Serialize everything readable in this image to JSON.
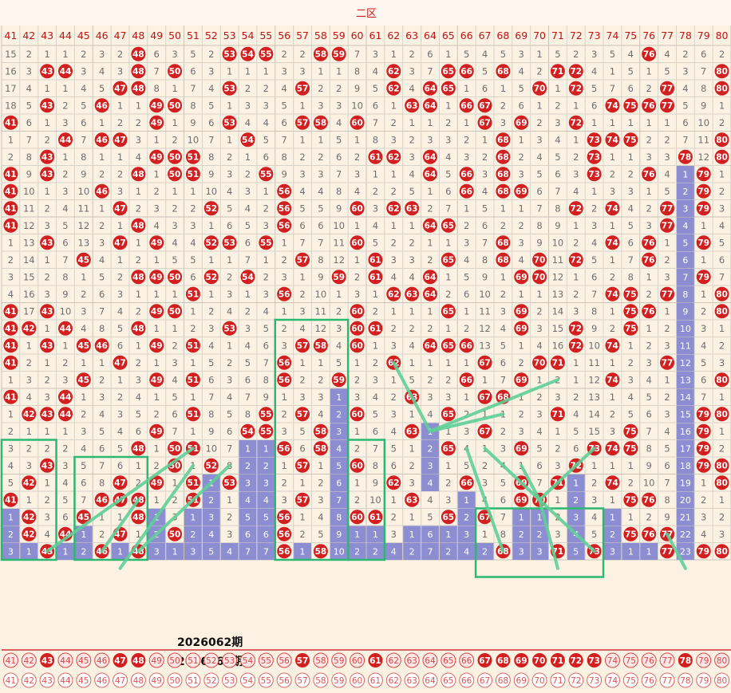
{
  "chart_data": {
    "type": "table",
    "zone_label": "二区",
    "columns": [
      41,
      42,
      43,
      44,
      45,
      46,
      47,
      48,
      49,
      50,
      51,
      52,
      53,
      54,
      55,
      56,
      57,
      58,
      59,
      60,
      61,
      62,
      63,
      64,
      65,
      66,
      67,
      68,
      69,
      70,
      71,
      72,
      73,
      74,
      75,
      76,
      77,
      78,
      79,
      80
    ],
    "rows": [
      [
        15,
        2,
        1,
        1,
        2,
        3,
        2,
        "H",
        6,
        3,
        5,
        2,
        "H",
        "H",
        "H",
        2,
        2,
        "H",
        "H",
        7,
        3,
        1,
        2,
        6,
        1,
        5,
        4,
        5,
        3,
        1,
        5,
        2,
        3,
        5,
        4,
        "H",
        4,
        2,
        6,
        2
      ],
      [
        16,
        3,
        "H",
        "H",
        3,
        4,
        3,
        "H",
        7,
        "H",
        6,
        3,
        1,
        1,
        1,
        3,
        3,
        1,
        1,
        8,
        4,
        "H",
        3,
        7,
        "H",
        "H",
        5,
        "H",
        4,
        2,
        "H",
        "H",
        4,
        1,
        5,
        1,
        5,
        3,
        7,
        "H"
      ],
      [
        17,
        4,
        1,
        1,
        4,
        5,
        "H",
        "H",
        8,
        1,
        7,
        4,
        "H",
        2,
        2,
        4,
        "H",
        2,
        2,
        9,
        5,
        "H",
        4,
        "H",
        "H",
        1,
        6,
        1,
        5,
        "H",
        1,
        "H",
        5,
        7,
        6,
        2,
        "H",
        4,
        8,
        "H"
      ],
      [
        18,
        5,
        "H",
        2,
        5,
        "H",
        1,
        1,
        "H",
        "H",
        8,
        5,
        1,
        3,
        3,
        5,
        1,
        3,
        3,
        10,
        6,
        1,
        "H",
        "H",
        1,
        "H",
        "H",
        2,
        6,
        1,
        2,
        1,
        6,
        "H",
        "H",
        "H",
        "H",
        5,
        9,
        1
      ],
      [
        "H",
        6,
        1,
        3,
        6,
        1,
        2,
        2,
        "H",
        1,
        9,
        6,
        "H",
        4,
        4,
        6,
        "H",
        "H",
        4,
        "H",
        7,
        2,
        1,
        1,
        2,
        1,
        "H",
        3,
        "H",
        2,
        3,
        "H",
        1,
        1,
        1,
        1,
        1,
        6,
        10,
        2
      ],
      [
        1,
        7,
        2,
        "H",
        7,
        "H",
        "H",
        3,
        1,
        2,
        10,
        7,
        1,
        "H",
        5,
        7,
        1,
        1,
        5,
        1,
        8,
        3,
        2,
        3,
        3,
        2,
        1,
        "H",
        1,
        3,
        4,
        1,
        "H",
        "H",
        "H",
        2,
        2,
        7,
        11,
        "H"
      ],
      [
        2,
        8,
        "H",
        1,
        8,
        1,
        1,
        4,
        "H",
        "H",
        "H",
        8,
        2,
        1,
        6,
        8,
        2,
        2,
        6,
        2,
        "H",
        "H",
        3,
        "H",
        4,
        3,
        2,
        "H",
        2,
        4,
        5,
        2,
        "H",
        1,
        1,
        3,
        3,
        "H",
        12,
        "H"
      ],
      [
        "H",
        9,
        "H",
        2,
        9,
        2,
        2,
        "H",
        1,
        "H",
        "H",
        9,
        3,
        2,
        "H",
        9,
        3,
        3,
        7,
        3,
        1,
        1,
        4,
        "H",
        5,
        "H",
        3,
        "H",
        3,
        5,
        6,
        3,
        "H",
        2,
        2,
        "H",
        4,
        "B1",
        "H",
        1
      ],
      [
        "H",
        10,
        1,
        3,
        10,
        "H",
        3,
        1,
        2,
        1,
        1,
        10,
        4,
        3,
        1,
        "H",
        4,
        4,
        8,
        4,
        2,
        2,
        5,
        1,
        6,
        "H",
        4,
        "H",
        "H",
        6,
        7,
        4,
        1,
        3,
        3,
        1,
        5,
        "B2",
        "H",
        2
      ],
      [
        "H",
        11,
        2,
        4,
        11,
        1,
        "H",
        2,
        3,
        2,
        2,
        "H",
        5,
        4,
        2,
        "H",
        5,
        5,
        9,
        "H",
        3,
        "H",
        "H",
        2,
        7,
        1,
        5,
        1,
        1,
        7,
        8,
        "H",
        2,
        "H",
        4,
        2,
        "H",
        "B3",
        "H",
        3
      ],
      [
        "H",
        12,
        3,
        5,
        12,
        2,
        1,
        "H",
        4,
        3,
        3,
        1,
        6,
        5,
        3,
        "H",
        6,
        6,
        10,
        1,
        4,
        1,
        1,
        "H",
        "H",
        2,
        6,
        2,
        2,
        8,
        9,
        1,
        3,
        1,
        5,
        3,
        "H",
        "B4",
        1,
        4
      ],
      [
        1,
        13,
        "H",
        6,
        13,
        3,
        "H",
        1,
        "H",
        4,
        4,
        "H",
        "H",
        6,
        "H",
        1,
        7,
        7,
        11,
        "H",
        5,
        2,
        2,
        1,
        1,
        3,
        7,
        "H",
        3,
        9,
        10,
        2,
        4,
        "H",
        6,
        "H",
        1,
        "B5",
        "H",
        5
      ],
      [
        2,
        14,
        1,
        7,
        "H",
        4,
        1,
        2,
        1,
        5,
        5,
        1,
        1,
        7,
        1,
        2,
        "H",
        8,
        12,
        1,
        "H",
        3,
        3,
        2,
        "H",
        4,
        8,
        "H",
        4,
        "H",
        11,
        "H",
        5,
        1,
        7,
        "H",
        2,
        "B6",
        1,
        6
      ],
      [
        3,
        15,
        2,
        8,
        1,
        5,
        2,
        "H",
        "H",
        "H",
        6,
        "H",
        2,
        "H",
        2,
        3,
        1,
        9,
        "H",
        2,
        "H",
        4,
        4,
        "H",
        1,
        5,
        9,
        1,
        "H",
        "H",
        12,
        1,
        6,
        2,
        8,
        1,
        3,
        "B7",
        "H",
        7
      ],
      [
        4,
        16,
        3,
        9,
        2,
        6,
        3,
        1,
        1,
        1,
        "H",
        1,
        3,
        1,
        3,
        "H",
        2,
        10,
        1,
        3,
        1,
        "H",
        "H",
        "H",
        2,
        6,
        10,
        2,
        1,
        1,
        13,
        2,
        7,
        "H",
        "H",
        2,
        "H",
        "B8",
        1,
        "H"
      ],
      [
        "H",
        17,
        "H",
        10,
        3,
        7,
        4,
        2,
        "H",
        "H",
        1,
        2,
        4,
        2,
        4,
        1,
        3,
        11,
        2,
        "H",
        2,
        1,
        1,
        1,
        "H",
        1,
        11,
        3,
        "H",
        2,
        14,
        3,
        8,
        1,
        "H",
        "H",
        1,
        "B9",
        2,
        "H"
      ],
      [
        "H",
        "H",
        1,
        "H",
        4,
        8,
        5,
        "H",
        1,
        1,
        2,
        3,
        "H",
        3,
        5,
        2,
        4,
        12,
        3,
        "H",
        "H",
        2,
        2,
        2,
        1,
        2,
        12,
        4,
        "H",
        3,
        15,
        "H",
        9,
        2,
        "H",
        1,
        2,
        "B10",
        3,
        1
      ],
      [
        "H",
        1,
        "H",
        1,
        "H",
        "H",
        6,
        1,
        "H",
        2,
        "H",
        4,
        1,
        4,
        6,
        3,
        "H",
        "H",
        4,
        "H",
        1,
        3,
        4,
        "H",
        "H",
        "H",
        13,
        5,
        1,
        4,
        16,
        "H",
        10,
        "H",
        1,
        2,
        3,
        "B11",
        4,
        2
      ],
      [
        "H",
        2,
        1,
        2,
        1,
        1,
        "H",
        2,
        1,
        3,
        1,
        5,
        2,
        5,
        7,
        "H",
        1,
        1,
        5,
        1,
        2,
        "H",
        1,
        1,
        1,
        1,
        "H",
        6,
        2,
        "H",
        "H",
        1,
        11,
        1,
        2,
        3,
        "H",
        "B12",
        5,
        3
      ],
      [
        1,
        3,
        2,
        3,
        "H",
        2,
        1,
        3,
        "H",
        4,
        "H",
        6,
        3,
        6,
        8,
        "H",
        2,
        2,
        "H",
        2,
        3,
        1,
        5,
        2,
        2,
        "H",
        1,
        7,
        "H",
        1,
        2,
        1,
        12,
        "H",
        3,
        4,
        1,
        "B13",
        6,
        "H"
      ],
      [
        "H",
        4,
        3,
        "H",
        1,
        3,
        2,
        4,
        1,
        5,
        1,
        7,
        4,
        7,
        9,
        1,
        3,
        3,
        "B1",
        3,
        4,
        2,
        "H",
        3,
        3,
        1,
        "H",
        "H",
        1,
        2,
        3,
        2,
        13,
        1,
        4,
        5,
        2,
        "B14",
        7,
        1
      ],
      [
        1,
        "H",
        "H",
        "H",
        2,
        4,
        3,
        5,
        2,
        6,
        "H",
        8,
        5,
        8,
        "H",
        2,
        "H",
        4,
        "B2",
        "H",
        5,
        3,
        1,
        4,
        "H",
        2,
        1,
        1,
        2,
        3,
        "H",
        4,
        14,
        2,
        5,
        6,
        3,
        "B15",
        "H",
        "H"
      ],
      [
        2,
        1,
        1,
        1,
        3,
        5,
        4,
        6,
        "H",
        7,
        1,
        9,
        6,
        "H",
        "H",
        3,
        5,
        "H",
        "B3",
        1,
        6,
        4,
        "H",
        "B1",
        1,
        3,
        "H",
        2,
        3,
        4,
        1,
        5,
        15,
        3,
        "H",
        7,
        4,
        "B16",
        "H",
        1
      ],
      [
        3,
        2,
        2,
        2,
        4,
        6,
        5,
        "H",
        1,
        "H",
        "H",
        10,
        7,
        "B1",
        "B1",
        "H",
        6,
        "H",
        "B4",
        2,
        7,
        5,
        1,
        "B2",
        "H",
        4,
        1,
        3,
        "H",
        5,
        2,
        6,
        "H",
        "H",
        "H",
        8,
        5,
        "B17",
        "H",
        2
      ],
      [
        4,
        3,
        "H",
        3,
        5,
        7,
        6,
        1,
        2,
        "H",
        1,
        "H",
        8,
        "B2",
        "B2",
        1,
        "H",
        1,
        "B5",
        "H",
        8,
        6,
        2,
        "B3",
        1,
        5,
        2,
        4,
        1,
        6,
        3,
        "H",
        1,
        1,
        1,
        9,
        6,
        "B18",
        "H",
        "H"
      ],
      [
        5,
        "H",
        1,
        4,
        6,
        8,
        "H",
        2,
        "H",
        1,
        "H",
        "B1",
        "H",
        "B3",
        "B3",
        2,
        1,
        2,
        "B6",
        1,
        9,
        "H",
        3,
        "B4",
        2,
        "H",
        3,
        5,
        "H",
        7,
        "H",
        "B1",
        2,
        "H",
        2,
        10,
        7,
        "B19",
        1,
        "H"
      ],
      [
        "H",
        1,
        2,
        5,
        7,
        "H",
        "H",
        "H",
        1,
        2,
        "H",
        "B2",
        1,
        "B4",
        "B4",
        3,
        "H",
        3,
        "B7",
        2,
        10,
        1,
        "H",
        4,
        3,
        "B1",
        4,
        6,
        "H",
        "H",
        1,
        "B2",
        3,
        1,
        "H",
        "H",
        8,
        "B20",
        2,
        1
      ],
      [
        "B1",
        "H",
        3,
        6,
        "H",
        1,
        1,
        "H",
        "B1",
        3,
        "B1",
        "B3",
        2,
        "B5",
        "B5",
        "H",
        1,
        4,
        "B8",
        "H",
        "H",
        2,
        1,
        5,
        "H",
        "B2",
        "H",
        7,
        "B1",
        "B1",
        2,
        "B3",
        4,
        "B1",
        1,
        2,
        9,
        "B21",
        3,
        2
      ],
      [
        "B2",
        "H",
        4,
        "H",
        "B1",
        2,
        "H",
        1,
        "B2",
        "H",
        "B2",
        "B4",
        3,
        "B6",
        "B6",
        "H",
        2,
        5,
        "B9",
        "B1",
        "B1",
        3,
        "B1",
        "B6",
        "B1",
        "B3",
        1,
        8,
        "B2",
        "B2",
        3,
        "B4",
        5,
        "B2",
        "H",
        "H",
        "H",
        "B22",
        4,
        3
      ],
      [
        "B3",
        "B1",
        "H",
        "B1",
        "B2",
        "H",
        "B1",
        "H",
        "B3",
        "B1",
        "B3",
        "B5",
        "B4",
        "B7",
        "B7",
        "H",
        "B1",
        "H",
        "B10",
        "B2",
        "B2",
        "B4",
        "B2",
        "B7",
        "B2",
        "B4",
        "B2",
        "H",
        "B3",
        "B3",
        "H",
        "B5",
        "H",
        "B3",
        "B1",
        "B1",
        "H",
        "B23",
        "H",
        "H"
      ]
    ],
    "issue_labels": [
      "2026062期",
      "2026063期"
    ],
    "draw_2026062": [
      43,
      46,
      47,
      48,
      56,
      57,
      58,
      60,
      61,
      67,
      68,
      69,
      70,
      71,
      72,
      73,
      78
    ],
    "draw_2026063": [
      43,
      47,
      48,
      57,
      61,
      67,
      68,
      69,
      70,
      71,
      72,
      73,
      78
    ],
    "colors": {
      "ball": "#d21f1f",
      "bar": "#8d8ed2",
      "box": "#2db872",
      "trend": "#5fd097",
      "header_text": "#c01414",
      "background": "#fbf2e4"
    }
  }
}
